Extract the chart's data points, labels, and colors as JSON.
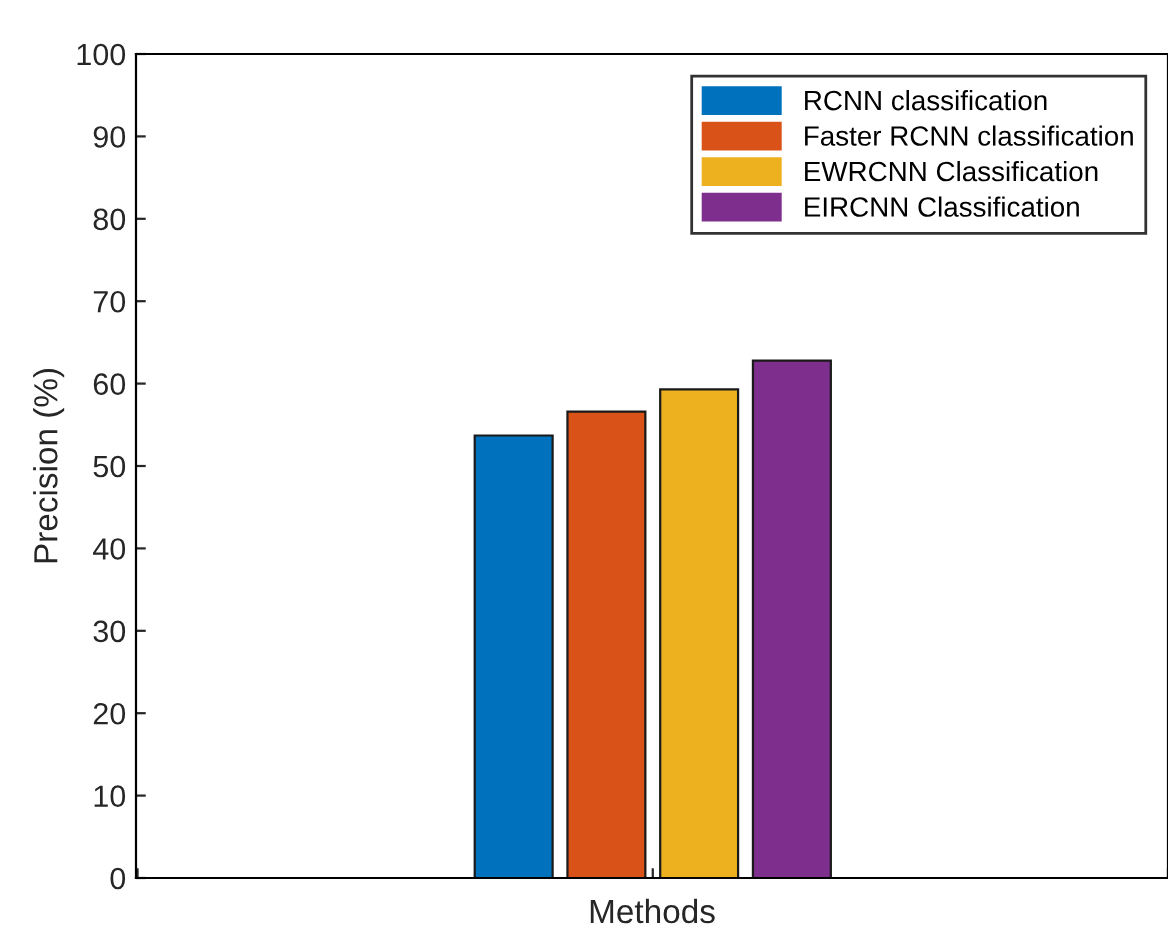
{
  "chart_data": {
    "type": "bar",
    "xlabel": "Methods",
    "ylabel": "Precision (%)",
    "categories": [
      null,
      null,
      null
    ],
    "series": [
      {
        "name": "RCNN classification",
        "color": "#0072bd",
        "values": [
          0,
          53.7,
          0
        ]
      },
      {
        "name": "Faster RCNN classification",
        "color": "#d95319",
        "values": [
          0,
          56.6,
          0
        ]
      },
      {
        "name": "EWRCNN Classification",
        "color": "#edb120",
        "values": [
          0,
          59.3,
          0
        ]
      },
      {
        "name": "EIRCNN Classification",
        "color": "#7e2f8e",
        "values": [
          0,
          62.8,
          0
        ]
      }
    ],
    "ylim": [
      0,
      100
    ],
    "yticks": [
      0,
      10,
      20,
      30,
      40,
      50,
      60,
      70,
      80,
      90,
      100
    ],
    "grid": false,
    "legend": "top right"
  }
}
